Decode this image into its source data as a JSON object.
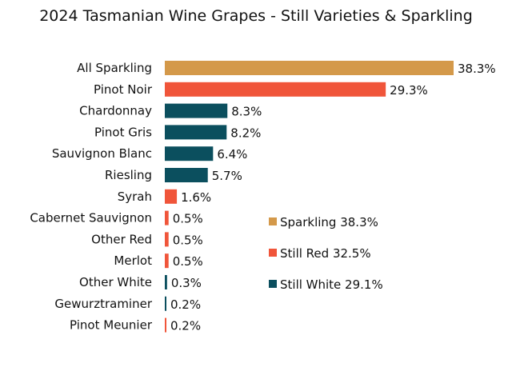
{
  "chart_data": {
    "type": "bar",
    "orientation": "horizontal",
    "title": "2024 Tasmanian Wine Grapes - Still Varieties & Sparkling",
    "categories": [
      "All Sparkling",
      "Pinot Noir",
      "Chardonnay",
      "Pinot Gris",
      "Sauvignon Blanc",
      "Riesling",
      "Syrah",
      "Cabernet Sauvignon",
      "Other Red",
      "Merlot",
      "Other White",
      "Gewurztraminer",
      "Pinot Meunier"
    ],
    "values": [
      38.3,
      29.3,
      8.3,
      8.2,
      6.4,
      5.7,
      1.6,
      0.5,
      0.5,
      0.5,
      0.3,
      0.2,
      0.2
    ],
    "data_labels": [
      "38.3%",
      "29.3%",
      "8.3%",
      "8.2%",
      "6.4%",
      "5.7%",
      "1.6%",
      "0.5%",
      "0.5%",
      "0.5%",
      "0.3%",
      "0.2%",
      "0.2%"
    ],
    "groups": [
      "Sparkling",
      "Still Red",
      "Still White",
      "Still White",
      "Still White",
      "Still White",
      "Still Red",
      "Still Red",
      "Still Red",
      "Still Red",
      "Still White",
      "Still White",
      "Still Red"
    ],
    "unit": "%",
    "xlim": [
      0,
      38.3
    ],
    "grid": false,
    "legend_position": "right",
    "legend": [
      {
        "group": "Sparkling",
        "label": "Sparkling 38.3%",
        "color": "#D4994A"
      },
      {
        "group": "Still Red",
        "label": "Still Red 32.5%",
        "color": "#F0553A"
      },
      {
        "group": "Still White",
        "label": "Still White 29.1%",
        "color": "#0B4F5E"
      }
    ]
  }
}
